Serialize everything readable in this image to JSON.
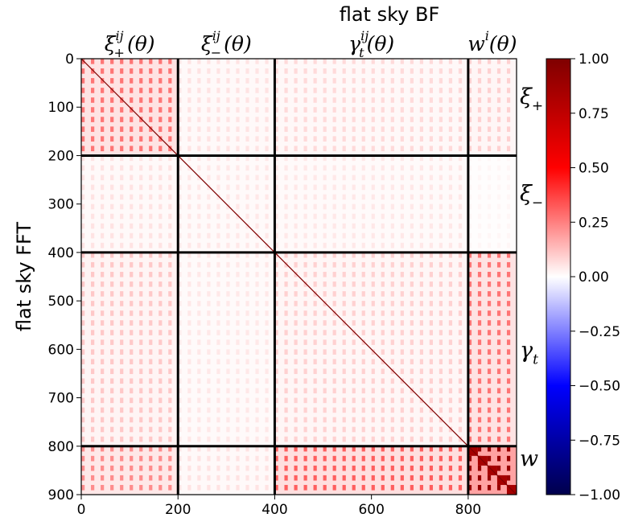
{
  "chart_data": {
    "type": "heatmap",
    "title": "flat sky BF",
    "ylabel": "flat sky FFT",
    "xlim": [
      0,
      900
    ],
    "ylim": [
      900,
      0
    ],
    "x_ticks": [
      "0",
      "200",
      "400",
      "600",
      "800"
    ],
    "y_ticks": [
      "0",
      "100",
      "200",
      "300",
      "400",
      "500",
      "600",
      "700",
      "800",
      "900"
    ],
    "block_boundaries": [
      200,
      400,
      800
    ],
    "top_block_labels": [
      {
        "base": "ξ",
        "sup": "ij",
        "sub": "+",
        "arg": "(θ)"
      },
      {
        "base": "ξ",
        "sup": "ij",
        "sub": "−",
        "arg": "(θ)"
      },
      {
        "base": "γ",
        "sup": "ij",
        "sub": "t",
        "arg": "(θ)"
      },
      {
        "base": "w",
        "sup": "i",
        "sub": "",
        "arg": "(θ)"
      }
    ],
    "right_block_labels": [
      {
        "base": "ξ",
        "sub": "+"
      },
      {
        "base": "ξ",
        "sub": "−"
      },
      {
        "base": "γ",
        "sub": "t"
      },
      {
        "base": "w",
        "sub": ""
      }
    ],
    "colorbar": {
      "colormap": "seismic",
      "range": [
        -1.0,
        1.0
      ],
      "ticks": [
        "1.00",
        "0.75",
        "0.50",
        "0.25",
        "0.00",
        "−0.25",
        "−0.50",
        "−0.75",
        "−1.00"
      ],
      "stops": [
        {
          "v": -1.0,
          "color": "#00004c"
        },
        {
          "v": -0.5,
          "color": "#0000ff"
        },
        {
          "v": 0.0,
          "color": "#ffffff"
        },
        {
          "v": 0.5,
          "color": "#ff0000"
        },
        {
          "v": 1.0,
          "color": "#7f0000"
        }
      ]
    },
    "block_mean_correlation": [
      [
        0.3,
        0.06,
        0.08,
        0.1
      ],
      [
        0.06,
        0.05,
        0.05,
        0.02
      ],
      [
        0.12,
        0.05,
        0.1,
        0.3
      ],
      [
        0.25,
        0.06,
        0.35,
        1.0
      ]
    ],
    "diagonal_value": 1.0
  }
}
